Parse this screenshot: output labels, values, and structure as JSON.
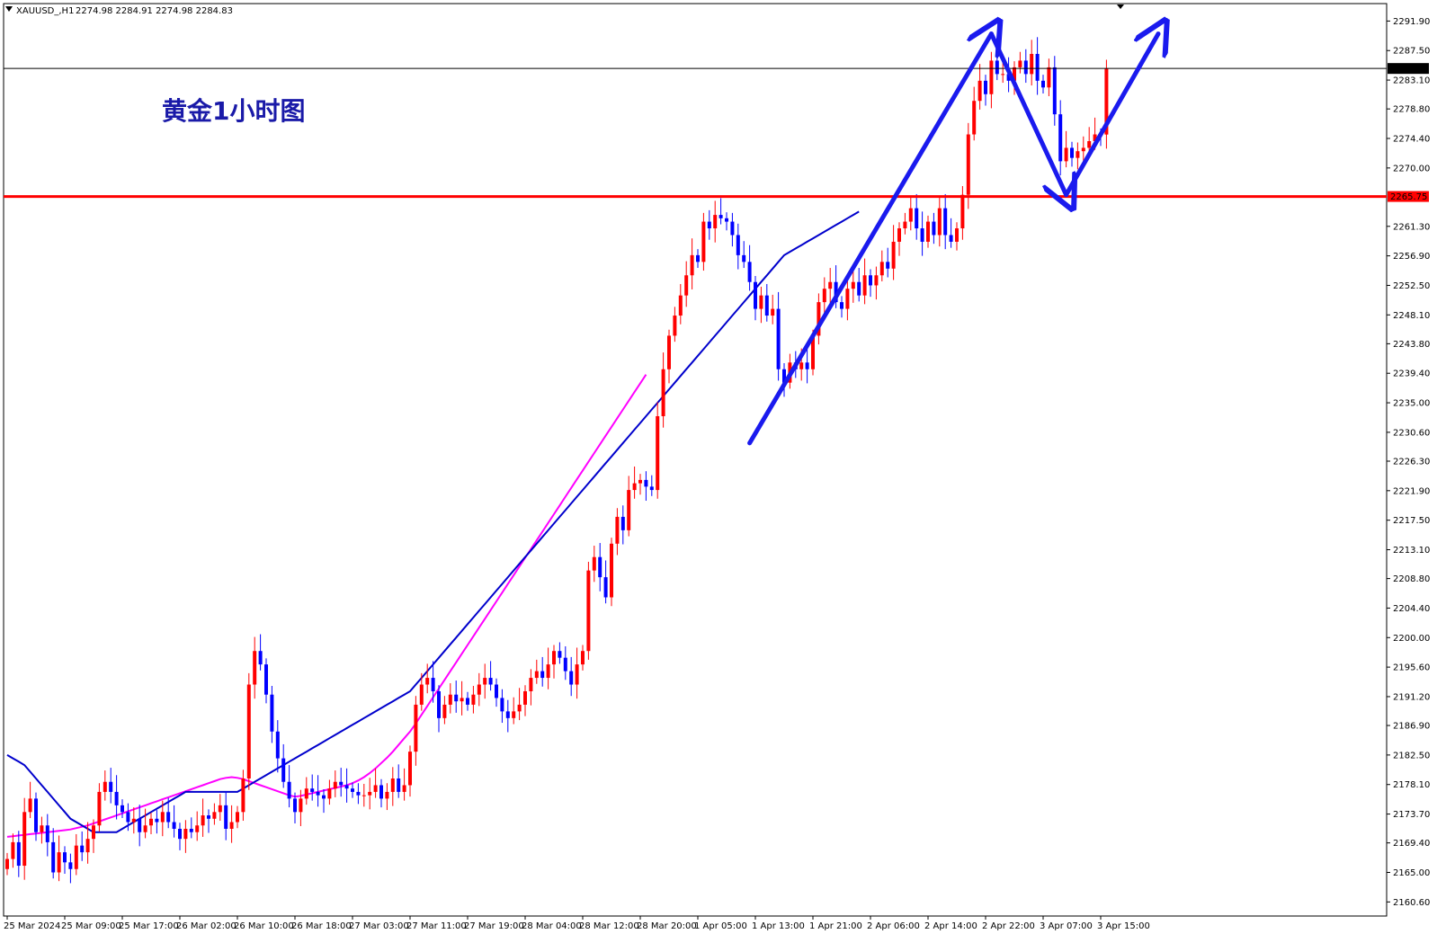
{
  "header": {
    "symbol": "XAUUSD_,H1",
    "ohlc": "2274.98 2284.91 2274.98 2284.83",
    "collapse_icon": "triangle-down-icon"
  },
  "annotation": {
    "title": "黄金1小时图"
  },
  "colors": {
    "bull": "#ff0000",
    "bear": "#0000ff",
    "ma_fast": "#0000cc",
    "ma_slow": "#ff00ff",
    "support": "#ff0000",
    "arrows": "#1a1aee",
    "grid": "none"
  },
  "chart_data": {
    "type": "candlestick",
    "title": "",
    "symbol": "XAUUSD",
    "timeframe": "H1",
    "ylim": [
      2158.5,
      2294.5
    ],
    "grid": false,
    "y_ticks": [
      "2291.90",
      "2287.50",
      "2283.10",
      "2278.80",
      "2274.40",
      "2270.00",
      "2261.30",
      "2256.90",
      "2252.50",
      "2248.10",
      "2243.80",
      "2239.40",
      "2235.00",
      "2230.60",
      "2226.30",
      "2221.90",
      "2217.50",
      "2213.10",
      "2208.80",
      "2204.40",
      "2200.00",
      "2195.60",
      "2191.20",
      "2186.90",
      "2182.50",
      "2178.10",
      "2173.70",
      "2169.40",
      "2165.00",
      "2160.60"
    ],
    "x_labels": [
      {
        "index": 0,
        "label": "25 Mar 2024"
      },
      {
        "index": 10,
        "label": "25 Mar 09:00"
      },
      {
        "index": 20,
        "label": "25 Mar 17:00"
      },
      {
        "index": 30,
        "label": "26 Mar 02:00"
      },
      {
        "index": 40,
        "label": "26 Mar 10:00"
      },
      {
        "index": 50,
        "label": "26 Mar 18:00"
      },
      {
        "index": 60,
        "label": "27 Mar 03:00"
      },
      {
        "index": 70,
        "label": "27 Mar 11:00"
      },
      {
        "index": 80,
        "label": "27 Mar 19:00"
      },
      {
        "index": 90,
        "label": "28 Mar 04:00"
      },
      {
        "index": 100,
        "label": "28 Mar 12:00"
      },
      {
        "index": 110,
        "label": "28 Mar 20:00"
      },
      {
        "index": 120,
        "label": "1 Apr 05:00"
      },
      {
        "index": 130,
        "label": "1 Apr 13:00"
      },
      {
        "index": 140,
        "label": "1 Apr 21:00"
      },
      {
        "index": 150,
        "label": "2 Apr 06:00"
      },
      {
        "index": 160,
        "label": "2 Apr 14:00"
      },
      {
        "index": 170,
        "label": "2 Apr 22:00"
      },
      {
        "index": 180,
        "label": "3 Apr 07:00"
      },
      {
        "index": 190,
        "label": "3 Apr 15:00"
      }
    ],
    "current_price": "2284.83",
    "support_level": "2265.75",
    "candles_close": [
      2167,
      2169.5,
      2166,
      2174,
      2176,
      2171,
      2172,
      2169.5,
      2165,
      2168,
      2166.5,
      2165.5,
      2169,
      2168,
      2170,
      2172,
      2177,
      2178.5,
      2177,
      2175,
      2174,
      2172.5,
      2173,
      2171,
      2172,
      2173,
      2172.5,
      2174,
      2172.5,
      2171.5,
      2170,
      2171.5,
      2171,
      2172,
      2173.5,
      2173,
      2174,
      2175,
      2171.5,
      2172.5,
      2174,
      2179,
      2193,
      2198,
      2196,
      2191.5,
      2186,
      2182,
      2178.5,
      2176,
      2174,
      2176,
      2177.5,
      2177,
      2176.5,
      2176,
      2177.5,
      2178.5,
      2178,
      2177.5,
      2177,
      2176.5,
      2176.5,
      2177,
      2178,
      2176,
      2177,
      2179,
      2177,
      2178,
      2183,
      2190,
      2193,
      2194,
      2192,
      2188,
      2190,
      2191.5,
      2190.5,
      2191,
      2190,
      2191.5,
      2193,
      2194,
      2193,
      2191,
      2189,
      2188,
      2189,
      2190,
      2192,
      2194,
      2195,
      2194,
      2196,
      2198,
      2197,
      2195,
      2193,
      2196,
      2198,
      2210,
      2212,
      2209,
      2206,
      2214,
      2218,
      2216,
      2222,
      2223,
      2223.5,
      2222.5,
      2222,
      2233,
      2240,
      2245,
      2248,
      2251,
      2254,
      2257,
      2256,
      2262,
      2261,
      2263,
      2262.5,
      2262,
      2260,
      2257,
      2256,
      2253,
      2249,
      2251,
      2248,
      2249,
      2240,
      2238,
      2241,
      2240,
      2241,
      2240,
      2245,
      2250,
      2252,
      2253,
      2250,
      2249,
      2252,
      2253,
      2251,
      2254,
      2252.5,
      2254,
      2256,
      2255,
      2259,
      2261,
      2262,
      2264,
      2261,
      2259,
      2262,
      2260,
      2264,
      2260,
      2259,
      2261,
      2266,
      2275,
      2280,
      2283,
      2281,
      2286,
      2284,
      2284,
      2283,
      2285,
      2286,
      2284,
      2287,
      2283,
      2282,
      2285,
      2278,
      2271,
      2273,
      2271.5,
      2272.5,
      2273,
      2274,
      2275,
      2274.98,
      2284.83
    ],
    "ma_fast": [
      2182.5,
      2182,
      2181.5,
      2181,
      2180,
      2179,
      2178,
      2177,
      2176,
      2175,
      2174,
      2173,
      2172.5,
      2172,
      2171.5,
      2171,
      2171,
      2171,
      2171,
      2171,
      2171.5,
      2172,
      2172.5,
      2173,
      2173.5,
      2174,
      2174.5,
      2175,
      2175.5,
      2176,
      2176.5,
      2177,
      2177,
      2177,
      2177,
      2177,
      2177,
      2177,
      2177,
      2177,
      2177,
      2177.5,
      2178,
      2178.5,
      2179,
      2179.5,
      2180,
      2180.5,
      2181,
      2181.5,
      2182,
      2182.5,
      2183,
      2183.5,
      2184,
      2184.5,
      2185,
      2185.5,
      2186,
      2186.5,
      2187,
      2187.5,
      2188,
      2188.5,
      2189,
      2189.5,
      2190,
      2190.5,
      2191,
      2191.5,
      2192,
      2193,
      2194,
      2195,
      2196,
      2197,
      2198,
      2199,
      2200,
      2201,
      2202,
      2203,
      2204,
      2205,
      2206,
      2207,
      2208,
      2209,
      2210,
      2211,
      2212,
      2213,
      2214,
      2215,
      2216,
      2217,
      2218,
      2219,
      2220,
      2221,
      2222,
      2223,
      2224,
      2225,
      2226,
      2227,
      2228,
      2229,
      2230,
      2231,
      2232,
      2233,
      2234,
      2235,
      2236,
      2237,
      2238,
      2239,
      2240,
      2241,
      2242,
      2243,
      2244,
      2245,
      2246,
      2247,
      2248,
      2249,
      2250,
      2251,
      2252,
      2253,
      2254,
      2255,
      2256,
      2257,
      2257.5,
      2258,
      2258.5,
      2259,
      2259.5,
      2260,
      2260.5,
      2261,
      2261.5,
      2262,
      2262.5,
      2263,
      2263.5
    ],
    "ma_slow": [
      2170.3,
      2170.4,
      2170.5,
      2170.6,
      2170.7,
      2170.8,
      2170.9,
      2171,
      2171.1,
      2171.2,
      2171.3,
      2171.4,
      2171.6,
      2171.8,
      2172,
      2172.3,
      2172.6,
      2172.9,
      2173.2,
      2173.5,
      2173.8,
      2174.1,
      2174.4,
      2174.7,
      2175,
      2175.3,
      2175.6,
      2175.9,
      2176.2,
      2176.5,
      2176.8,
      2177.1,
      2177.4,
      2177.7,
      2178,
      2178.3,
      2178.6,
      2178.9,
      2179.1,
      2179.2,
      2179.1,
      2178.9,
      2178.6,
      2178.3,
      2178,
      2177.7,
      2177.4,
      2177.1,
      2176.8,
      2176.5,
      2176.3,
      2176.4,
      2176.6,
      2176.8,
      2177,
      2177.2,
      2177.4,
      2177.6,
      2177.8,
      2178,
      2178.3,
      2178.7,
      2179.2,
      2179.8,
      2180.5,
      2181.3,
      2182.1,
      2183,
      2184,
      2185,
      2186,
      2187.2,
      2188.5,
      2189.8,
      2191.1,
      2192.4,
      2193.7,
      2195,
      2196.3,
      2197.6,
      2198.9,
      2200.2,
      2201.5,
      2202.8,
      2204.1,
      2205.4,
      2206.7,
      2208,
      2209.3,
      2210.6,
      2211.9,
      2213.2,
      2214.5,
      2215.8,
      2217.1,
      2218.4,
      2219.7,
      2221,
      2222.3,
      2223.6,
      2224.9,
      2226.2,
      2227.5,
      2228.8,
      2230.1,
      2231.4,
      2232.7,
      2234,
      2235.3,
      2236.6,
      2237.9,
      2239.2
    ],
    "annotations": [
      {
        "type": "arrow",
        "from": {
          "x": 129,
          "y": 2229
        },
        "to": {
          "x": 171,
          "y": 2290
        }
      },
      {
        "type": "arrow",
        "from": {
          "x": 171,
          "y": 2290
        },
        "to": {
          "x": 184,
          "y": 2266
        }
      },
      {
        "type": "arrow",
        "from": {
          "x": 184,
          "y": 2266
        },
        "to": {
          "x": 200,
          "y": 2290
        }
      }
    ]
  }
}
